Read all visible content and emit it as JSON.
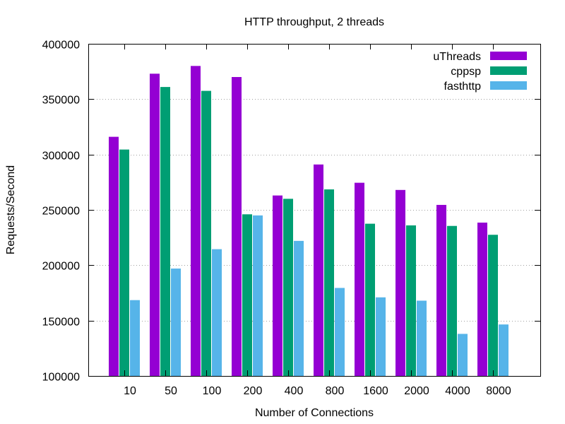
{
  "chart_data": {
    "type": "bar",
    "title": "HTTP throughput, 2 threads",
    "xlabel": "Number of Connections",
    "ylabel": "Requests/Second",
    "ylim": [
      100000,
      400000
    ],
    "yticks": [
      100000,
      150000,
      200000,
      250000,
      300000,
      350000,
      400000
    ],
    "grid": "horizontal dotted",
    "legend_position": "top-right",
    "categories": [
      "10",
      "50",
      "100",
      "200",
      "400",
      "800",
      "1600",
      "2000",
      "4000",
      "8000"
    ],
    "series": [
      {
        "name": "uThreads",
        "color": "#9400d3",
        "values": [
          316000,
          373000,
          380000,
          370000,
          263000,
          291000,
          274500,
          268000,
          254500,
          238500
        ]
      },
      {
        "name": "cppsp",
        "color": "#009e73",
        "values": [
          304500,
          361000,
          357500,
          246000,
          260000,
          268500,
          237500,
          236000,
          235500,
          227500
        ]
      },
      {
        "name": "fasthttp",
        "color": "#56b4e9",
        "values": [
          168500,
          197000,
          214500,
          245000,
          222000,
          179500,
          171000,
          168000,
          138000,
          146500
        ]
      }
    ]
  }
}
